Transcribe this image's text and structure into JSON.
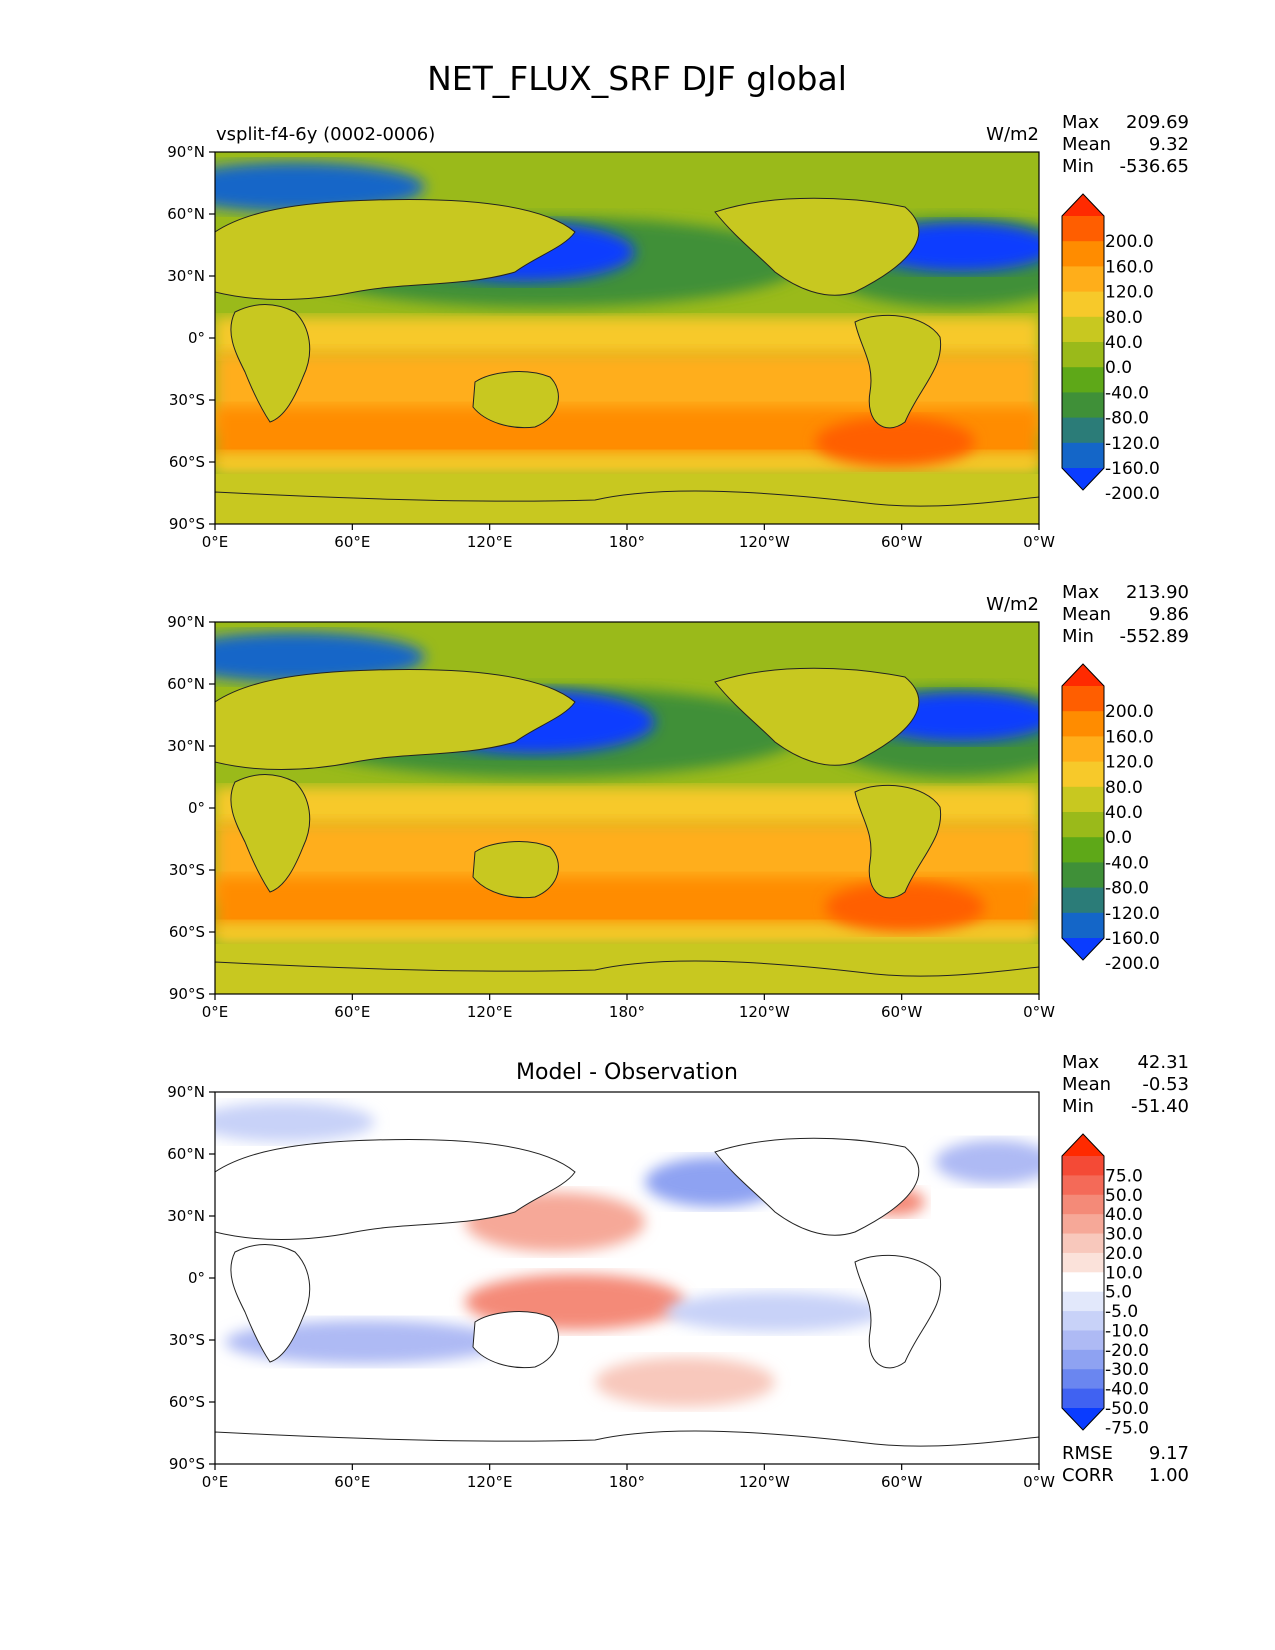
{
  "title": "NET_FLUX_SRF DJF global",
  "chart_data": [
    {
      "type": "contour-map",
      "panel": "test",
      "left_label": "vsplit-f4-6y (0002-0006)",
      "center_label": "",
      "units": "W/m2",
      "stats": [
        {
          "label": "Max",
          "value": "209.69"
        },
        {
          "label": "Mean",
          "value": "9.32"
        },
        {
          "label": "Min",
          "value": "-536.65"
        }
      ],
      "colorbar": {
        "levels": [
          "200.0",
          "160.0",
          "120.0",
          "80.0",
          "40.0",
          "0.0",
          "-40.0",
          "-80.0",
          "-120.0",
          "-160.0",
          "-200.0"
        ],
        "colors": [
          "#ff2a00",
          "#ff5e00",
          "#ff8c00",
          "#ffae1a",
          "#f7c92a",
          "#c8c820",
          "#9aba1a",
          "#5ea818",
          "#3f9038",
          "#2b7c78",
          "#1466c8",
          "#0a3cff"
        ]
      },
      "xticks": [
        "0°E",
        "60°E",
        "120°E",
        "180°",
        "120°W",
        "60°W",
        "0°W"
      ],
      "yticks": [
        "90°N",
        "60°N",
        "30°N",
        "0°",
        "30°S",
        "60°S",
        "90°S"
      ],
      "xlim": [
        0,
        360
      ],
      "ylim": [
        -90,
        90
      ]
    },
    {
      "type": "contour-map",
      "panel": "reference",
      "left_label": "",
      "center_label": "",
      "units": "W/m2",
      "stats": [
        {
          "label": "Max",
          "value": "213.90"
        },
        {
          "label": "Mean",
          "value": "9.86"
        },
        {
          "label": "Min",
          "value": "-552.89"
        }
      ],
      "colorbar": {
        "levels": [
          "200.0",
          "160.0",
          "120.0",
          "80.0",
          "40.0",
          "0.0",
          "-40.0",
          "-80.0",
          "-120.0",
          "-160.0",
          "-200.0"
        ],
        "colors": [
          "#ff2a00",
          "#ff5e00",
          "#ff8c00",
          "#ffae1a",
          "#f7c92a",
          "#c8c820",
          "#9aba1a",
          "#5ea818",
          "#3f9038",
          "#2b7c78",
          "#1466c8",
          "#0a3cff"
        ]
      },
      "xticks": [
        "0°E",
        "60°E",
        "120°E",
        "180°",
        "120°W",
        "60°W",
        "0°W"
      ],
      "yticks": [
        "90°N",
        "60°N",
        "30°N",
        "0°",
        "30°S",
        "60°S",
        "90°S"
      ],
      "xlim": [
        0,
        360
      ],
      "ylim": [
        -90,
        90
      ]
    },
    {
      "type": "contour-map",
      "panel": "difference",
      "left_label": "",
      "center_label": "Model - Observation",
      "units": "",
      "stats": [
        {
          "label": "Max",
          "value": "42.31"
        },
        {
          "label": "Mean",
          "value": "-0.53"
        },
        {
          "label": "Min",
          "value": "-51.40"
        }
      ],
      "extra_stats": [
        {
          "label": "RMSE",
          "value": "9.17"
        },
        {
          "label": "CORR",
          "value": "1.00"
        }
      ],
      "colorbar": {
        "levels": [
          "75.0",
          "50.0",
          "40.0",
          "30.0",
          "20.0",
          "10.0",
          "5.0",
          "-5.0",
          "-10.0",
          "-20.0",
          "-30.0",
          "-40.0",
          "-50.0",
          "-75.0"
        ],
        "colors": [
          "#ff2a00",
          "#f44a36",
          "#f46a58",
          "#f48a78",
          "#f6a898",
          "#f8c8bc",
          "#fbe2da",
          "#ffffff",
          "#e2e8fb",
          "#c8d2f8",
          "#aebaf4",
          "#8ea2f2",
          "#6a86f0",
          "#4062f2",
          "#0a3cff"
        ]
      },
      "xticks": [
        "0°E",
        "60°E",
        "120°E",
        "180°",
        "120°W",
        "60°W",
        "0°W"
      ],
      "yticks": [
        "90°N",
        "60°N",
        "30°N",
        "0°",
        "30°S",
        "60°S",
        "90°S"
      ],
      "xlim": [
        0,
        360
      ],
      "ylim": [
        -90,
        90
      ]
    }
  ]
}
